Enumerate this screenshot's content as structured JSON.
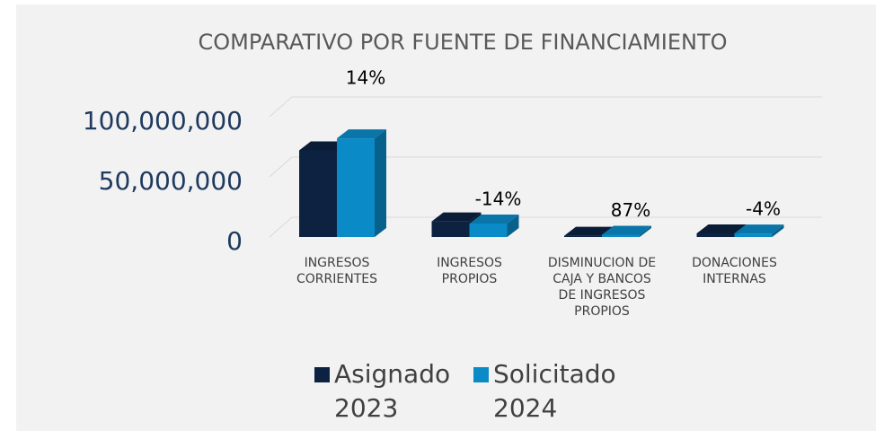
{
  "chart_data": {
    "type": "bar3d",
    "title": "COMPARATIVO POR FUENTE DE FINANCIAMIENTO",
    "categories": [
      "INGRESOS CORRIENTES",
      "INGRESOS PROPIOS",
      "DISMINUCION DE CAJA Y BANCOS DE INGRESOS PROPIOS",
      "DONACIONES INTERNAS"
    ],
    "series": [
      {
        "name": "Asignado 2023",
        "color": "#0d2240",
        "values": [
          72000000,
          13000000,
          1000000,
          3000000
        ]
      },
      {
        "name": "Solicitado 2024",
        "color": "#0a8ac6",
        "values": [
          82000000,
          11200000,
          1870000,
          2880000
        ]
      }
    ],
    "annotations": [
      "14%",
      "-14%",
      "87%",
      "-4%"
    ],
    "ylim": [
      0,
      100000000
    ],
    "yticks": [
      0,
      {
        "value": 50000000,
        "label": "50,000,000"
      },
      {
        "value": 100000000,
        "label": "100,000,000"
      }
    ],
    "grid": true,
    "legend": "bottom"
  }
}
